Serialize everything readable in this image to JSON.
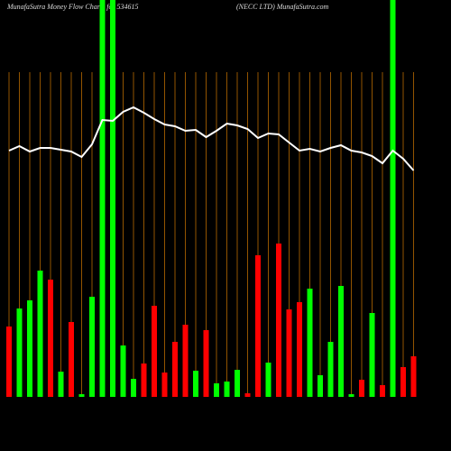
{
  "chart_data": {
    "type": "bar",
    "title": "MunafaSutra  Money Flow  Charts for 534615",
    "subtitle": "(NECC LTD) MunafaSutra.com",
    "categories": [
      null,
      null,
      null,
      null,
      null,
      null,
      null,
      null,
      null,
      null,
      null,
      null,
      null,
      null,
      null,
      null,
      null,
      null,
      null,
      null,
      null,
      null,
      null,
      null,
      null,
      null,
      null,
      null,
      null,
      null,
      null,
      null,
      null,
      null,
      null,
      null,
      null,
      null,
      null,
      null
    ],
    "ylim": [
      0,
      440
    ],
    "grid": true,
    "grid_color": "#b86a00",
    "series": [
      {
        "type": "bar",
        "values": [
          78,
          98,
          107,
          140,
          130,
          28,
          83,
          3,
          111,
          440,
          440,
          57,
          20,
          37,
          101,
          27,
          61,
          80,
          29,
          74,
          15,
          17,
          30,
          4,
          157,
          38,
          170,
          97,
          105,
          120,
          24,
          61,
          123,
          3,
          19,
          93,
          13,
          440,
          33,
          45
        ],
        "colors": [
          "#f00",
          "#0f0",
          "#0f0",
          "#0f0",
          "#f00",
          "#0f0",
          "#f00",
          "#0f0",
          "#0f0",
          "#0f0",
          "#0f0",
          "#0f0",
          "#0f0",
          "#f00",
          "#f00",
          "#f00",
          "#f00",
          "#f00",
          "#0f0",
          "#f00",
          "#0f0",
          "#0f0",
          "#0f0",
          "#f00",
          "#f00",
          "#0f0",
          "#f00",
          "#f00",
          "#f00",
          "#0f0",
          "#0f0",
          "#0f0",
          "#0f0",
          "#0f0",
          "#f00",
          "#0f0",
          "#f00",
          "#0f0",
          "#f00",
          "#f00"
        ]
      },
      {
        "type": "line",
        "color": "#fff",
        "values": [
          273,
          278,
          272,
          276,
          276,
          274,
          272,
          266,
          280,
          307,
          306,
          316,
          321,
          315,
          308,
          302,
          300,
          295,
          296,
          288,
          295,
          303,
          301,
          297,
          287,
          292,
          291,
          282,
          273,
          275,
          272,
          276,
          279,
          273,
          271,
          267,
          259,
          273,
          264,
          251
        ]
      }
    ]
  }
}
